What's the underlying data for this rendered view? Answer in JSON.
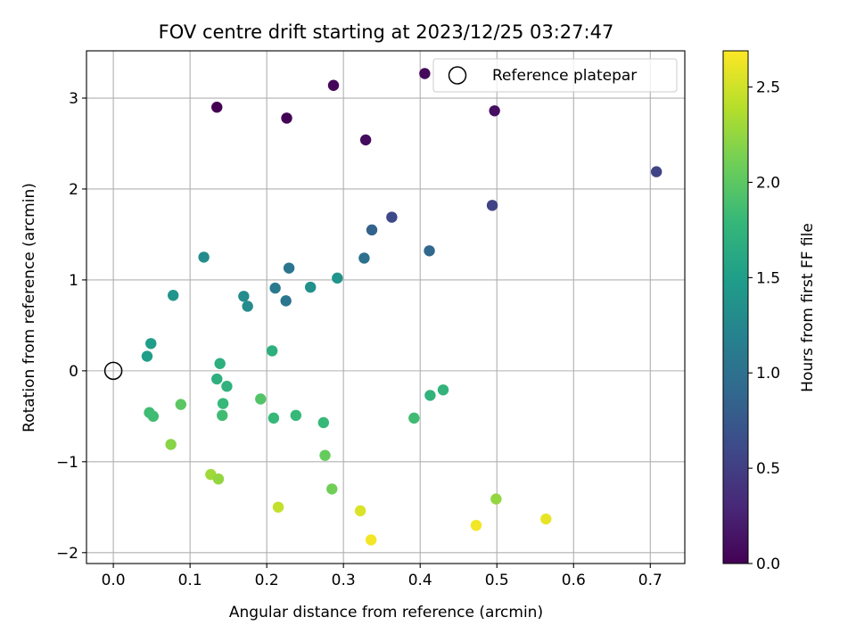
{
  "chart_data": {
    "type": "scatter",
    "title": "FOV centre drift starting at 2023/12/25 03:27:47",
    "xlabel": "Angular distance from reference (arcmin)",
    "ylabel": "Rotation from reference (arcmin)",
    "xlim": [
      -0.035,
      0.745
    ],
    "ylim": [
      -2.12,
      3.52
    ],
    "xticks": [
      0.0,
      0.1,
      0.2,
      0.3,
      0.4,
      0.5,
      0.6,
      0.7
    ],
    "xtick_labels": [
      "0.0",
      "0.1",
      "0.2",
      "0.3",
      "0.4",
      "0.5",
      "0.6",
      "0.7"
    ],
    "yticks": [
      -2,
      -1,
      0,
      1,
      2,
      3
    ],
    "ytick_labels": [
      "−2",
      "−1",
      "0",
      "1",
      "2",
      "3"
    ],
    "grid": true,
    "legend": {
      "position": "upper-right",
      "entries": [
        {
          "label": "Reference platepar",
          "marker": "open-circle",
          "color": "#000000"
        }
      ]
    },
    "reference_point": {
      "x": 0.0,
      "y": 0.0
    },
    "colorbar": {
      "label": "Hours from first FF file",
      "colormap": "viridis",
      "range": [
        0.0,
        2.69
      ],
      "ticks": [
        0.0,
        0.5,
        1.0,
        1.5,
        2.0,
        2.5
      ],
      "tick_labels": [
        "0.0",
        "0.5",
        "1.0",
        "1.5",
        "2.0",
        "2.5"
      ],
      "colors": [
        "#440154",
        "#482878",
        "#3e4989",
        "#31688e",
        "#26828e",
        "#1f9e89",
        "#35b779",
        "#6ece58",
        "#b5de2b",
        "#fde725"
      ]
    },
    "points": [
      {
        "x": 0.135,
        "y": 2.9,
        "t": 0.0
      },
      {
        "x": 0.226,
        "y": 2.78,
        "t": 0.02
      },
      {
        "x": 0.287,
        "y": 3.14,
        "t": 0.04
      },
      {
        "x": 0.406,
        "y": 3.27,
        "t": 0.06
      },
      {
        "x": 0.329,
        "y": 2.54,
        "t": 0.08
      },
      {
        "x": 0.497,
        "y": 2.86,
        "t": 0.1
      },
      {
        "x": 0.708,
        "y": 2.19,
        "t": 0.55
      },
      {
        "x": 0.494,
        "y": 1.82,
        "t": 0.55
      },
      {
        "x": 0.363,
        "y": 1.69,
        "t": 0.6
      },
      {
        "x": 0.337,
        "y": 1.55,
        "t": 0.85
      },
      {
        "x": 0.412,
        "y": 1.32,
        "t": 0.9
      },
      {
        "x": 0.327,
        "y": 1.24,
        "t": 1.0
      },
      {
        "x": 0.229,
        "y": 1.13,
        "t": 1.05
      },
      {
        "x": 0.211,
        "y": 0.91,
        "t": 1.1
      },
      {
        "x": 0.225,
        "y": 0.77,
        "t": 1.05
      },
      {
        "x": 0.118,
        "y": 1.25,
        "t": 1.3
      },
      {
        "x": 0.257,
        "y": 0.92,
        "t": 1.35
      },
      {
        "x": 0.292,
        "y": 1.02,
        "t": 1.4
      },
      {
        "x": 0.17,
        "y": 0.82,
        "t": 1.3
      },
      {
        "x": 0.175,
        "y": 0.71,
        "t": 1.3
      },
      {
        "x": 0.078,
        "y": 0.83,
        "t": 1.4
      },
      {
        "x": 0.049,
        "y": 0.3,
        "t": 1.5
      },
      {
        "x": 0.044,
        "y": 0.16,
        "t": 1.5
      },
      {
        "x": 0.139,
        "y": 0.08,
        "t": 1.7
      },
      {
        "x": 0.207,
        "y": 0.22,
        "t": 1.7
      },
      {
        "x": 0.135,
        "y": -0.09,
        "t": 1.7
      },
      {
        "x": 0.148,
        "y": -0.17,
        "t": 1.72
      },
      {
        "x": 0.143,
        "y": -0.36,
        "t": 1.8
      },
      {
        "x": 0.142,
        "y": -0.49,
        "t": 1.85
      },
      {
        "x": 0.192,
        "y": -0.31,
        "t": 1.95
      },
      {
        "x": 0.209,
        "y": -0.52,
        "t": 1.8
      },
      {
        "x": 0.238,
        "y": -0.49,
        "t": 1.8
      },
      {
        "x": 0.274,
        "y": -0.57,
        "t": 1.8
      },
      {
        "x": 0.047,
        "y": -0.46,
        "t": 1.85
      },
      {
        "x": 0.052,
        "y": -0.5,
        "t": 1.85
      },
      {
        "x": 0.088,
        "y": -0.37,
        "t": 2.0
      },
      {
        "x": 0.392,
        "y": -0.52,
        "t": 1.85
      },
      {
        "x": 0.413,
        "y": -0.27,
        "t": 1.75
      },
      {
        "x": 0.43,
        "y": -0.21,
        "t": 1.75
      },
      {
        "x": 0.276,
        "y": -0.93,
        "t": 2.05
      },
      {
        "x": 0.285,
        "y": -1.3,
        "t": 2.1
      },
      {
        "x": 0.075,
        "y": -0.81,
        "t": 2.2
      },
      {
        "x": 0.127,
        "y": -1.14,
        "t": 2.3
      },
      {
        "x": 0.137,
        "y": -1.19,
        "t": 2.25
      },
      {
        "x": 0.499,
        "y": -1.41,
        "t": 2.25
      },
      {
        "x": 0.215,
        "y": -1.5,
        "t": 2.45
      },
      {
        "x": 0.322,
        "y": -1.54,
        "t": 2.55
      },
      {
        "x": 0.336,
        "y": -1.86,
        "t": 2.65
      },
      {
        "x": 0.473,
        "y": -1.7,
        "t": 2.65
      },
      {
        "x": 0.564,
        "y": -1.63,
        "t": 2.6
      }
    ]
  }
}
